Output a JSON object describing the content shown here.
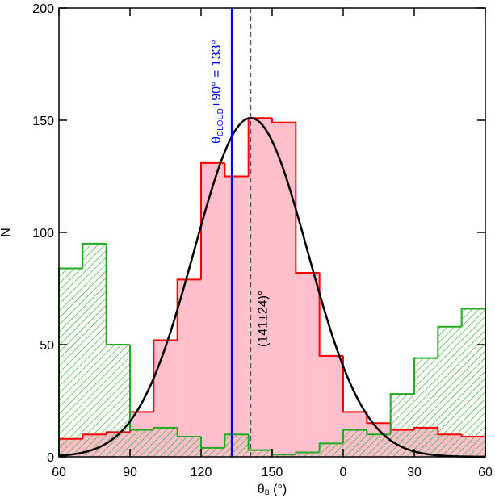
{
  "chart_data": {
    "type": "histogram",
    "xlabel": {
      "symbol": "θ",
      "subscript": "B",
      "unit": " (°)"
    },
    "ylabel": "N",
    "bins": [
      60,
      70,
      80,
      90,
      100,
      110,
      120,
      130,
      140,
      150,
      160,
      170,
      180,
      190,
      200,
      210,
      220,
      230,
      240
    ],
    "series": [
      {
        "color": "#ff0000",
        "fill": "#ffc0cb",
        "values": [
          8,
          10,
          11,
          20,
          52,
          79,
          131,
          125,
          151,
          149,
          82,
          45,
          20,
          15,
          12,
          13,
          10,
          9
        ]
      },
      {
        "color": "#22aa22",
        "hatch": true,
        "values": [
          84,
          95,
          50,
          12,
          13,
          9,
          4,
          10,
          3,
          1,
          2,
          6,
          12,
          10,
          28,
          44,
          58,
          66
        ]
      }
    ],
    "fit": {
      "amplitude": 151,
      "mean": 141,
      "sigma": 24,
      "color": "#000000",
      "label": "(141±24)°"
    },
    "reference_line": {
      "value": 133,
      "color": "#0000ff",
      "label": {
        "symbol": "θ",
        "subscript": "CLOUD",
        "rest": "+90° = 133°"
      }
    },
    "xlim": [
      60,
      240
    ],
    "xticks": [
      60,
      90,
      120,
      150,
      {
        "value": 180,
        "label": "0"
      },
      {
        "value": 210,
        "label": "30"
      },
      {
        "value": 240,
        "label": "60"
      }
    ],
    "ylim": [
      0,
      200
    ],
    "yticks": [
      0,
      50,
      100,
      150,
      200
    ]
  }
}
